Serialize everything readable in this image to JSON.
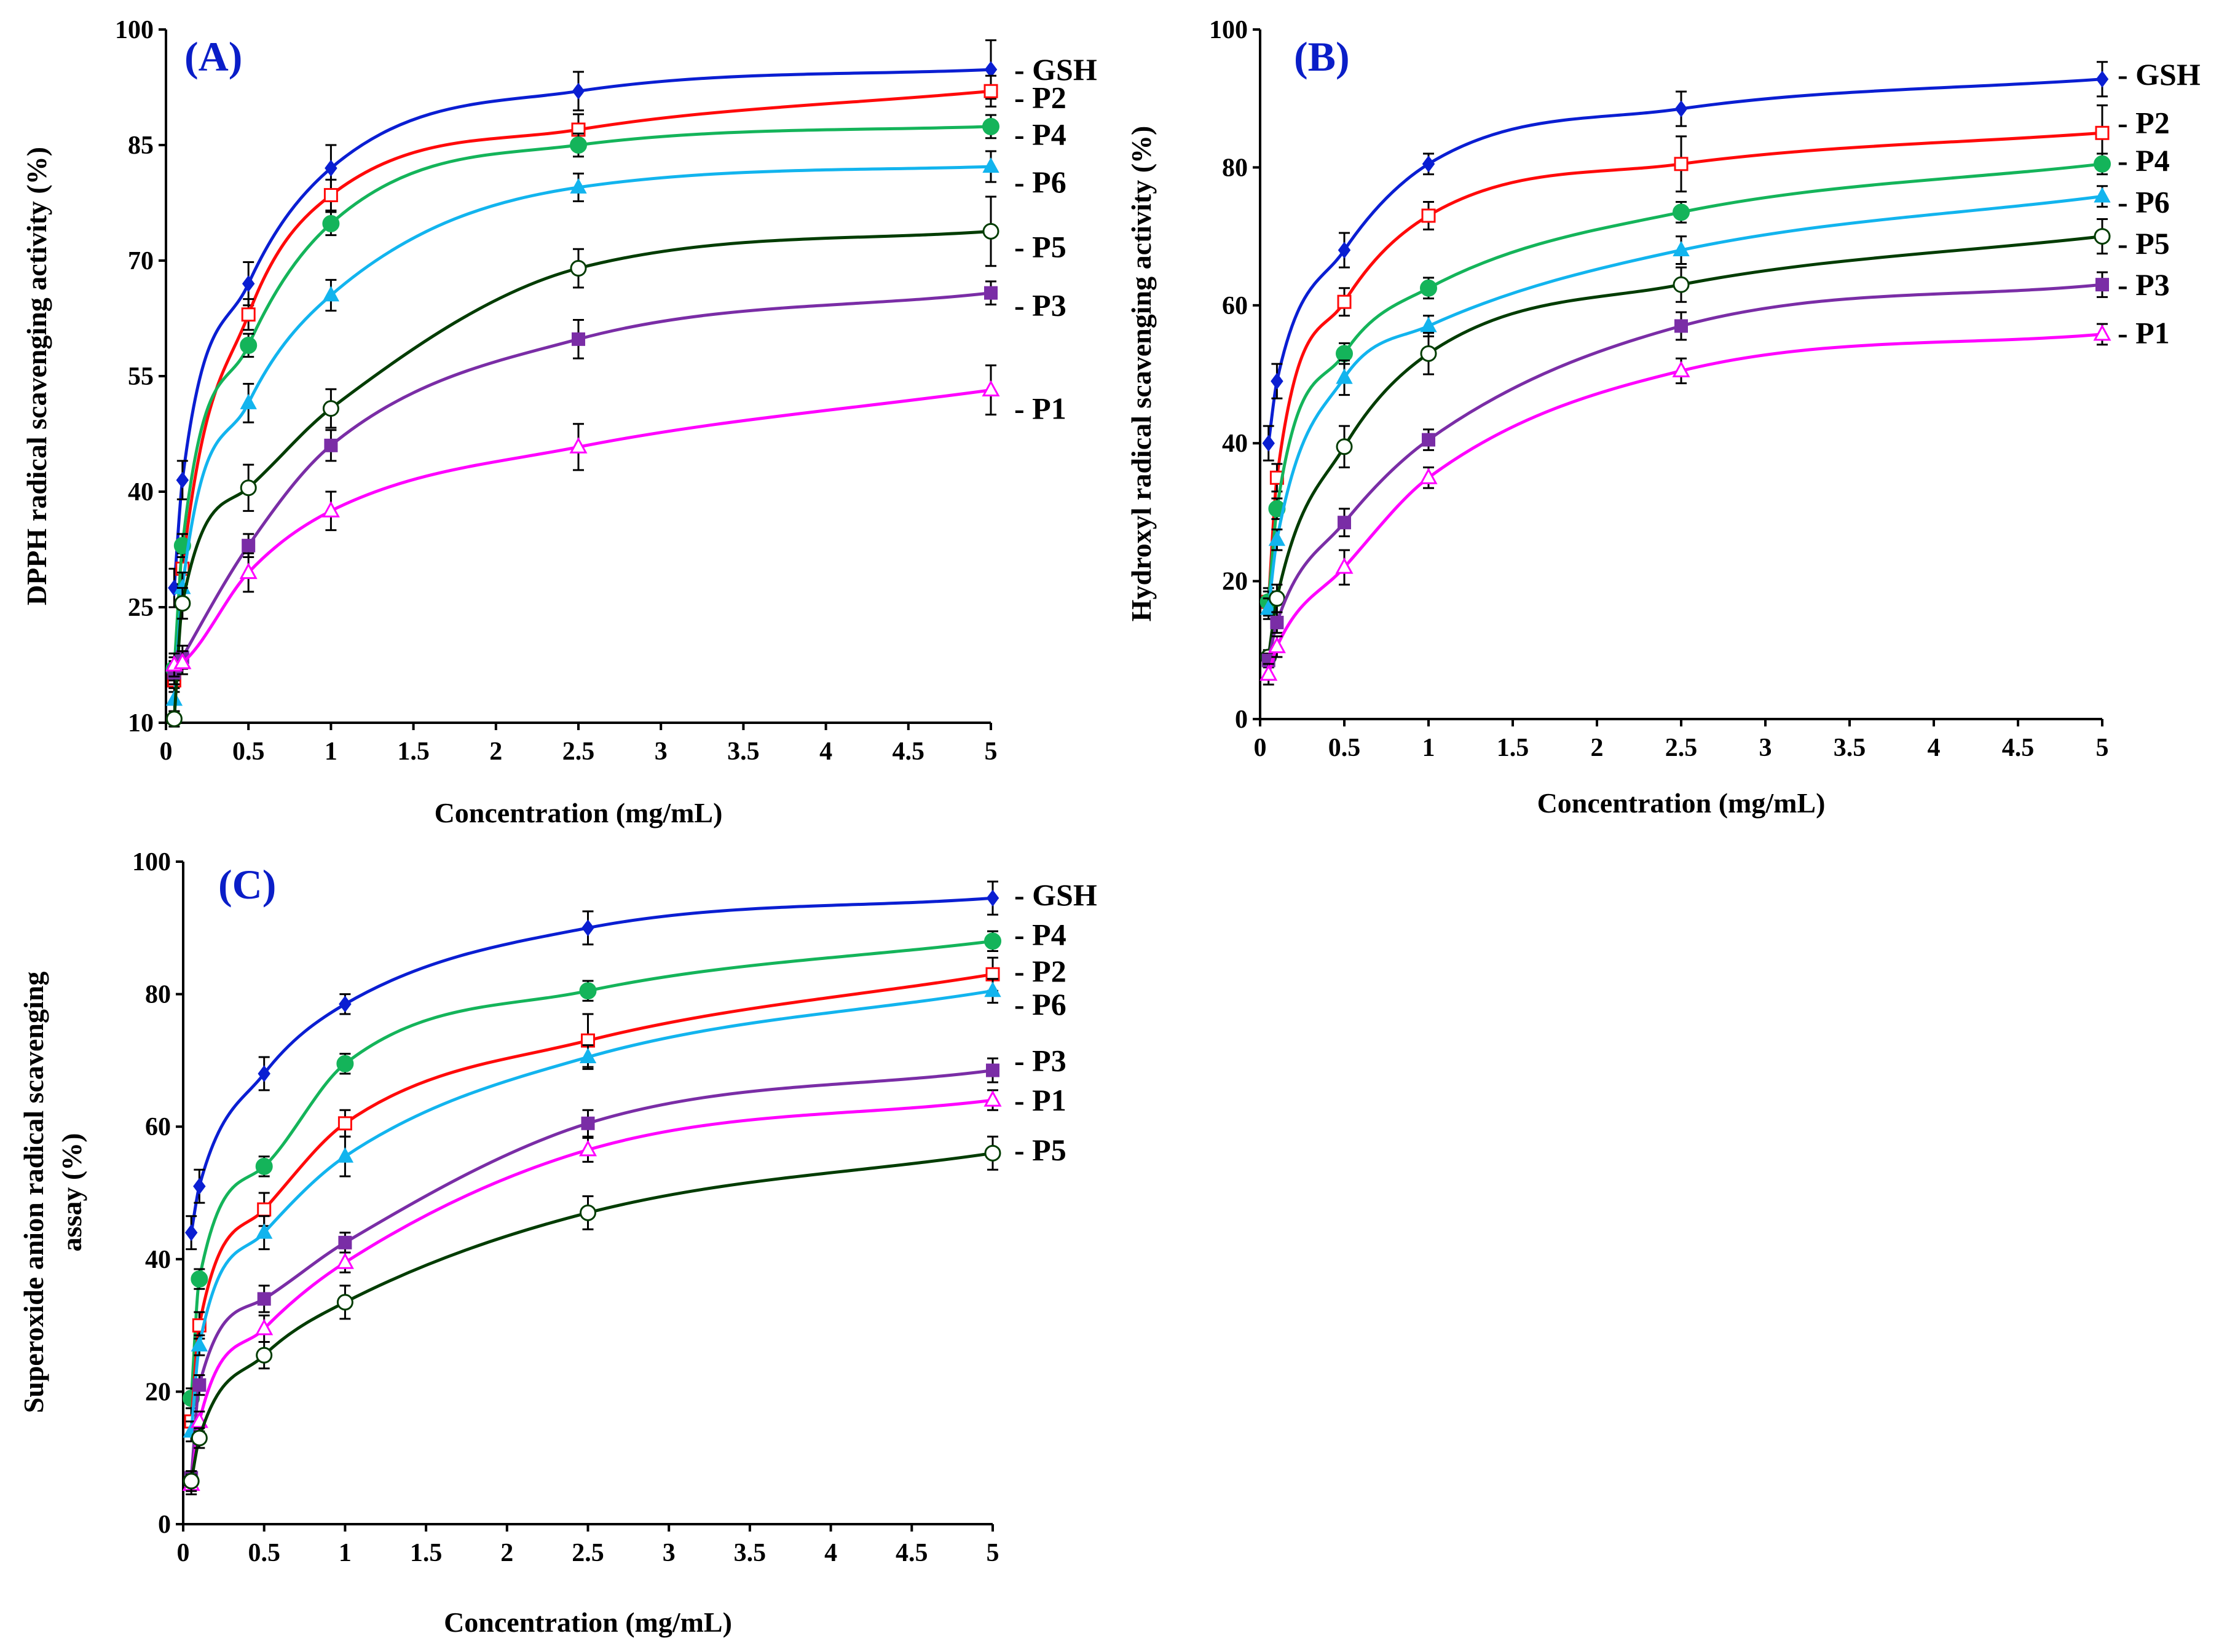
{
  "colors": {
    "GSH": "#0a1ed2",
    "P2": "#ff0a0a",
    "P4": "#14b45a",
    "P6": "#12b4ee",
    "P5": "#003c00",
    "P3": "#7a2da6",
    "P1": "#ff00ff"
  },
  "chart_data": [
    {
      "type": "line",
      "panel": "(A)",
      "xlabel": "Concentration (mg/mL)",
      "ylabel": "DPPH radical scavenging activity (%)",
      "ylim": [
        10,
        100
      ],
      "yticks": [
        "10",
        "25",
        "40",
        "55",
        "70",
        "85",
        "100"
      ],
      "xticks": [
        "0",
        "0.5",
        "1",
        "1.5",
        "2",
        "2.5",
        "3",
        "3.5",
        "4",
        "4.5",
        "5"
      ],
      "x": [
        0.05,
        0.1,
        0.5,
        1,
        2.5,
        5
      ],
      "series": [
        {
          "name": "GSH",
          "marker": "diamond",
          "values": [
            27.5,
            41.5,
            67.0,
            82.0,
            92.0,
            94.8
          ],
          "err": [
            2.5,
            2.5,
            2.8,
            3.0,
            2.5,
            3.8
          ]
        },
        {
          "name": "P2",
          "marker": "square-open",
          "values": [
            15.5,
            30.0,
            63.0,
            78.5,
            87.0,
            92.0
          ],
          "err": [
            1.5,
            2.0,
            2.0,
            2.0,
            2.0,
            2.0
          ]
        },
        {
          "name": "P4",
          "marker": "circle",
          "values": [
            17.0,
            33.0,
            59.0,
            74.8,
            85.0,
            87.4
          ],
          "err": [
            1.5,
            1.5,
            1.5,
            1.5,
            1.5,
            1.5
          ]
        },
        {
          "name": "P6",
          "marker": "triangle",
          "values": [
            13.0,
            27.5,
            51.5,
            65.5,
            79.5,
            82.2
          ],
          "err": [
            1.5,
            2.0,
            2.5,
            2.0,
            1.8,
            2.0
          ]
        },
        {
          "name": "P5",
          "marker": "circle-open",
          "values": [
            10.5,
            25.5,
            40.5,
            50.8,
            69.0,
            73.8
          ],
          "err": [
            1.0,
            2.0,
            3.0,
            2.5,
            2.5,
            4.5
          ]
        },
        {
          "name": "P3",
          "marker": "square",
          "values": [
            16.5,
            18.5,
            33.0,
            46.0,
            59.8,
            65.8
          ],
          "err": [
            1.5,
            1.5,
            1.5,
            2.0,
            2.5,
            1.5
          ]
        },
        {
          "name": "P1",
          "marker": "triangle-open",
          "values": [
            17.5,
            17.8,
            29.5,
            37.5,
            45.8,
            53.2
          ],
          "err": [
            1.5,
            1.5,
            2.5,
            2.5,
            3.0,
            3.2
          ]
        }
      ]
    },
    {
      "type": "line",
      "panel": "(B)",
      "xlabel": "Concentration (mg/mL)",
      "ylabel": "Hydroxyl radical scavenging activity (%)",
      "ylim": [
        0,
        100
      ],
      "yticks": [
        "0",
        "20",
        "40",
        "60",
        "80",
        "100"
      ],
      "xticks": [
        "0",
        "0.5",
        "1",
        "1.5",
        "2",
        "2.5",
        "3",
        "3.5",
        "4",
        "4.5",
        "5"
      ],
      "x": [
        0.05,
        0.1,
        0.5,
        1,
        2.5,
        5
      ],
      "series": [
        {
          "name": "GSH",
          "marker": "diamond",
          "values": [
            40.0,
            49.0,
            68.0,
            80.5,
            88.5,
            92.8
          ],
          "err": [
            2.5,
            2.5,
            2.5,
            1.5,
            2.5,
            2.5
          ]
        },
        {
          "name": "P2",
          "marker": "square-open",
          "values": [
            17.0,
            35.0,
            60.5,
            73.0,
            80.5,
            85.0
          ],
          "err": [
            2.0,
            2.0,
            2.0,
            2.0,
            4.0,
            4.0
          ]
        },
        {
          "name": "P4",
          "marker": "circle",
          "values": [
            17.0,
            30.5,
            53.0,
            62.5,
            73.5,
            80.5
          ],
          "err": [
            1.5,
            1.5,
            1.5,
            1.5,
            1.5,
            1.5
          ]
        },
        {
          "name": "P6",
          "marker": "triangle",
          "values": [
            16.0,
            26.0,
            49.5,
            57.0,
            68.0,
            75.8
          ],
          "err": [
            1.5,
            1.5,
            2.5,
            1.5,
            2.0,
            1.5
          ]
        },
        {
          "name": "P5",
          "marker": "circle-open",
          "values": [
            9.0,
            17.5,
            39.5,
            53.0,
            63.0,
            70.0
          ],
          "err": [
            1.0,
            2.0,
            3.0,
            3.0,
            2.5,
            2.5
          ]
        },
        {
          "name": "P3",
          "marker": "square",
          "values": [
            8.5,
            14.0,
            28.5,
            40.5,
            57.0,
            63.0
          ],
          "err": [
            1.0,
            1.5,
            2.0,
            1.5,
            2.0,
            1.8
          ]
        },
        {
          "name": "P1",
          "marker": "triangle-open",
          "values": [
            6.5,
            10.5,
            22.0,
            35.0,
            50.5,
            55.8
          ],
          "err": [
            1.5,
            1.5,
            2.5,
            1.5,
            1.8,
            1.5
          ]
        }
      ]
    },
    {
      "type": "line",
      "panel": "(C)",
      "xlabel": "Concentration (mg/mL)",
      "ylabel": "Superoxide anion radical scavenging assay (%)",
      "ylabel_line1": "Superoxide anion radical scavenging",
      "ylabel_line2": "assay (%)",
      "ylim": [
        0,
        100
      ],
      "yticks": [
        "0",
        "20",
        "40",
        "60",
        "80",
        "100"
      ],
      "xticks": [
        "0",
        "0.5",
        "1",
        "1.5",
        "2",
        "2.5",
        "3",
        "3.5",
        "4",
        "4.5",
        "5"
      ],
      "x": [
        0.05,
        0.1,
        0.5,
        1,
        2.5,
        5
      ],
      "series": [
        {
          "name": "GSH",
          "marker": "diamond",
          "values": [
            44.0,
            51.0,
            68.0,
            78.5,
            90.0,
            94.5
          ],
          "err": [
            2.5,
            2.5,
            2.5,
            1.5,
            2.5,
            2.5
          ]
        },
        {
          "name": "P4",
          "marker": "circle",
          "values": [
            19.0,
            37.0,
            54.0,
            69.5,
            80.5,
            88.0
          ],
          "err": [
            1.5,
            1.5,
            1.5,
            1.5,
            1.5,
            1.5
          ]
        },
        {
          "name": "P2",
          "marker": "square-open",
          "values": [
            15.5,
            30.0,
            47.5,
            60.5,
            73.0,
            83.0
          ],
          "err": [
            2.0,
            2.0,
            2.5,
            2.0,
            4.0,
            2.5
          ]
        },
        {
          "name": "P6",
          "marker": "triangle",
          "values": [
            14.0,
            27.0,
            44.0,
            55.5,
            70.5,
            80.5
          ],
          "err": [
            1.5,
            1.5,
            2.5,
            3.0,
            1.8,
            1.8
          ]
        },
        {
          "name": "P3",
          "marker": "square",
          "values": [
            7.0,
            21.0,
            34.0,
            42.5,
            60.5,
            68.5
          ],
          "err": [
            1.0,
            1.5,
            2.0,
            1.5,
            2.0,
            1.8
          ]
        },
        {
          "name": "P1",
          "marker": "triangle-open",
          "values": [
            6.0,
            15.5,
            29.5,
            39.5,
            56.5,
            64.0
          ],
          "err": [
            1.5,
            1.5,
            2.0,
            1.5,
            1.8,
            1.5
          ]
        },
        {
          "name": "P5",
          "marker": "circle-open",
          "values": [
            6.5,
            13.0,
            25.5,
            33.5,
            47.0,
            56.0
          ],
          "err": [
            1.5,
            1.5,
            2.0,
            2.5,
            2.5,
            2.5
          ]
        }
      ]
    }
  ]
}
